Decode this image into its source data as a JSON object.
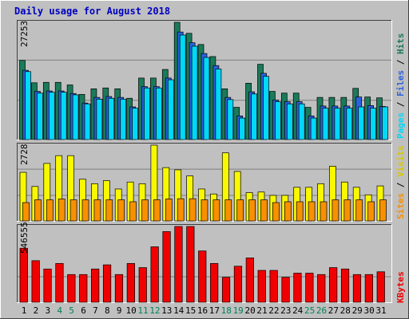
{
  "chart_data": [
    {
      "type": "bar",
      "title": "Daily usage for August 2018",
      "categories": [
        "1",
        "2",
        "3",
        "4",
        "5",
        "6",
        "7",
        "8",
        "9",
        "10",
        "11",
        "12",
        "13",
        "14",
        "15",
        "16",
        "17",
        "18",
        "19",
        "20",
        "21",
        "22",
        "23",
        "24",
        "25",
        "26",
        "27",
        "28",
        "29",
        "30",
        "31"
      ],
      "weekend_days": [
        "4",
        "5",
        "11",
        "12",
        "18",
        "19",
        "25",
        "26"
      ],
      "ymax_label": "27253",
      "ylim": [
        0,
        27253
      ],
      "series": [
        {
          "name": "Hits",
          "color": "#1a7a5a",
          "values": [
            18400,
            13200,
            13300,
            13300,
            12700,
            10500,
            11800,
            12000,
            11800,
            9600,
            14300,
            14300,
            16300,
            27253,
            24700,
            22100,
            19300,
            11800,
            7500,
            13100,
            17500,
            11200,
            10800,
            10800,
            7500,
            9800,
            9800,
            9800,
            11900,
            9900,
            9700
          ]
        },
        {
          "name": "Files",
          "color": "#2a62e0",
          "values": [
            16100,
            11200,
            11300,
            11300,
            10700,
            8500,
            9800,
            10000,
            9800,
            7600,
            12300,
            12300,
            14300,
            25000,
            22500,
            20000,
            17200,
            9800,
            5500,
            11100,
            15400,
            9200,
            8800,
            8800,
            5500,
            7800,
            7800,
            7800,
            9900,
            7900,
            7700
          ]
        },
        {
          "name": "Pages",
          "color": "#00d8f8",
          "values": [
            15800,
            10800,
            11000,
            11000,
            10400,
            8300,
            9400,
            9600,
            9400,
            7300,
            12000,
            12000,
            13900,
            24300,
            21700,
            19100,
            16400,
            9300,
            5000,
            10600,
            14700,
            8800,
            8300,
            8300,
            5000,
            7300,
            7300,
            7300,
            7600,
            7300,
            7600
          ]
        }
      ]
    },
    {
      "type": "bar",
      "ymax_label": "2728",
      "ylim": [
        0,
        2728
      ],
      "series": [
        {
          "name": "Visits",
          "color": "#f8f800",
          "values": [
            1750,
            1240,
            2070,
            2350,
            2350,
            1500,
            1340,
            1450,
            1150,
            1400,
            1340,
            2728,
            1920,
            1840,
            1620,
            1150,
            970,
            2450,
            1780,
            1020,
            1040,
            920,
            920,
            1210,
            1210,
            1340,
            1970,
            1400,
            1210,
            940,
            1260
          ]
        },
        {
          "name": "Sites",
          "color": "#f89000",
          "values": [
            660,
            760,
            760,
            790,
            760,
            760,
            760,
            760,
            760,
            690,
            760,
            760,
            790,
            800,
            800,
            760,
            760,
            760,
            760,
            760,
            760,
            660,
            690,
            690,
            690,
            690,
            760,
            760,
            760,
            690,
            760
          ]
        }
      ]
    },
    {
      "type": "bar",
      "ymax_label": "546555",
      "ylim": [
        0,
        546555
      ],
      "series": [
        {
          "name": "KBytes",
          "color": "#f00000",
          "values": [
            390000,
            300000,
            240000,
            280000,
            200000,
            200000,
            240000,
            270000,
            200000,
            280000,
            250000,
            400000,
            510000,
            546555,
            546555,
            370000,
            280000,
            180000,
            260000,
            320000,
            230000,
            230000,
            180000,
            210000,
            210000,
            200000,
            250000,
            240000,
            200000,
            200000,
            220000
          ]
        }
      ]
    }
  ],
  "side_labels": {
    "top": {
      "pages": "Pages",
      "files": "Files",
      "hits": "Hits",
      "sep": " / "
    },
    "middle": {
      "sites": "Sites",
      "visits": "Visits",
      "sep": " / "
    },
    "bottom": {
      "kbytes": "KBytes"
    }
  },
  "colors": {
    "title": "#0000c0",
    "weekday_label": "#000000",
    "weekend_label": "#00805a",
    "plot_bg": "#c0c0c0",
    "grid": "#808080"
  }
}
